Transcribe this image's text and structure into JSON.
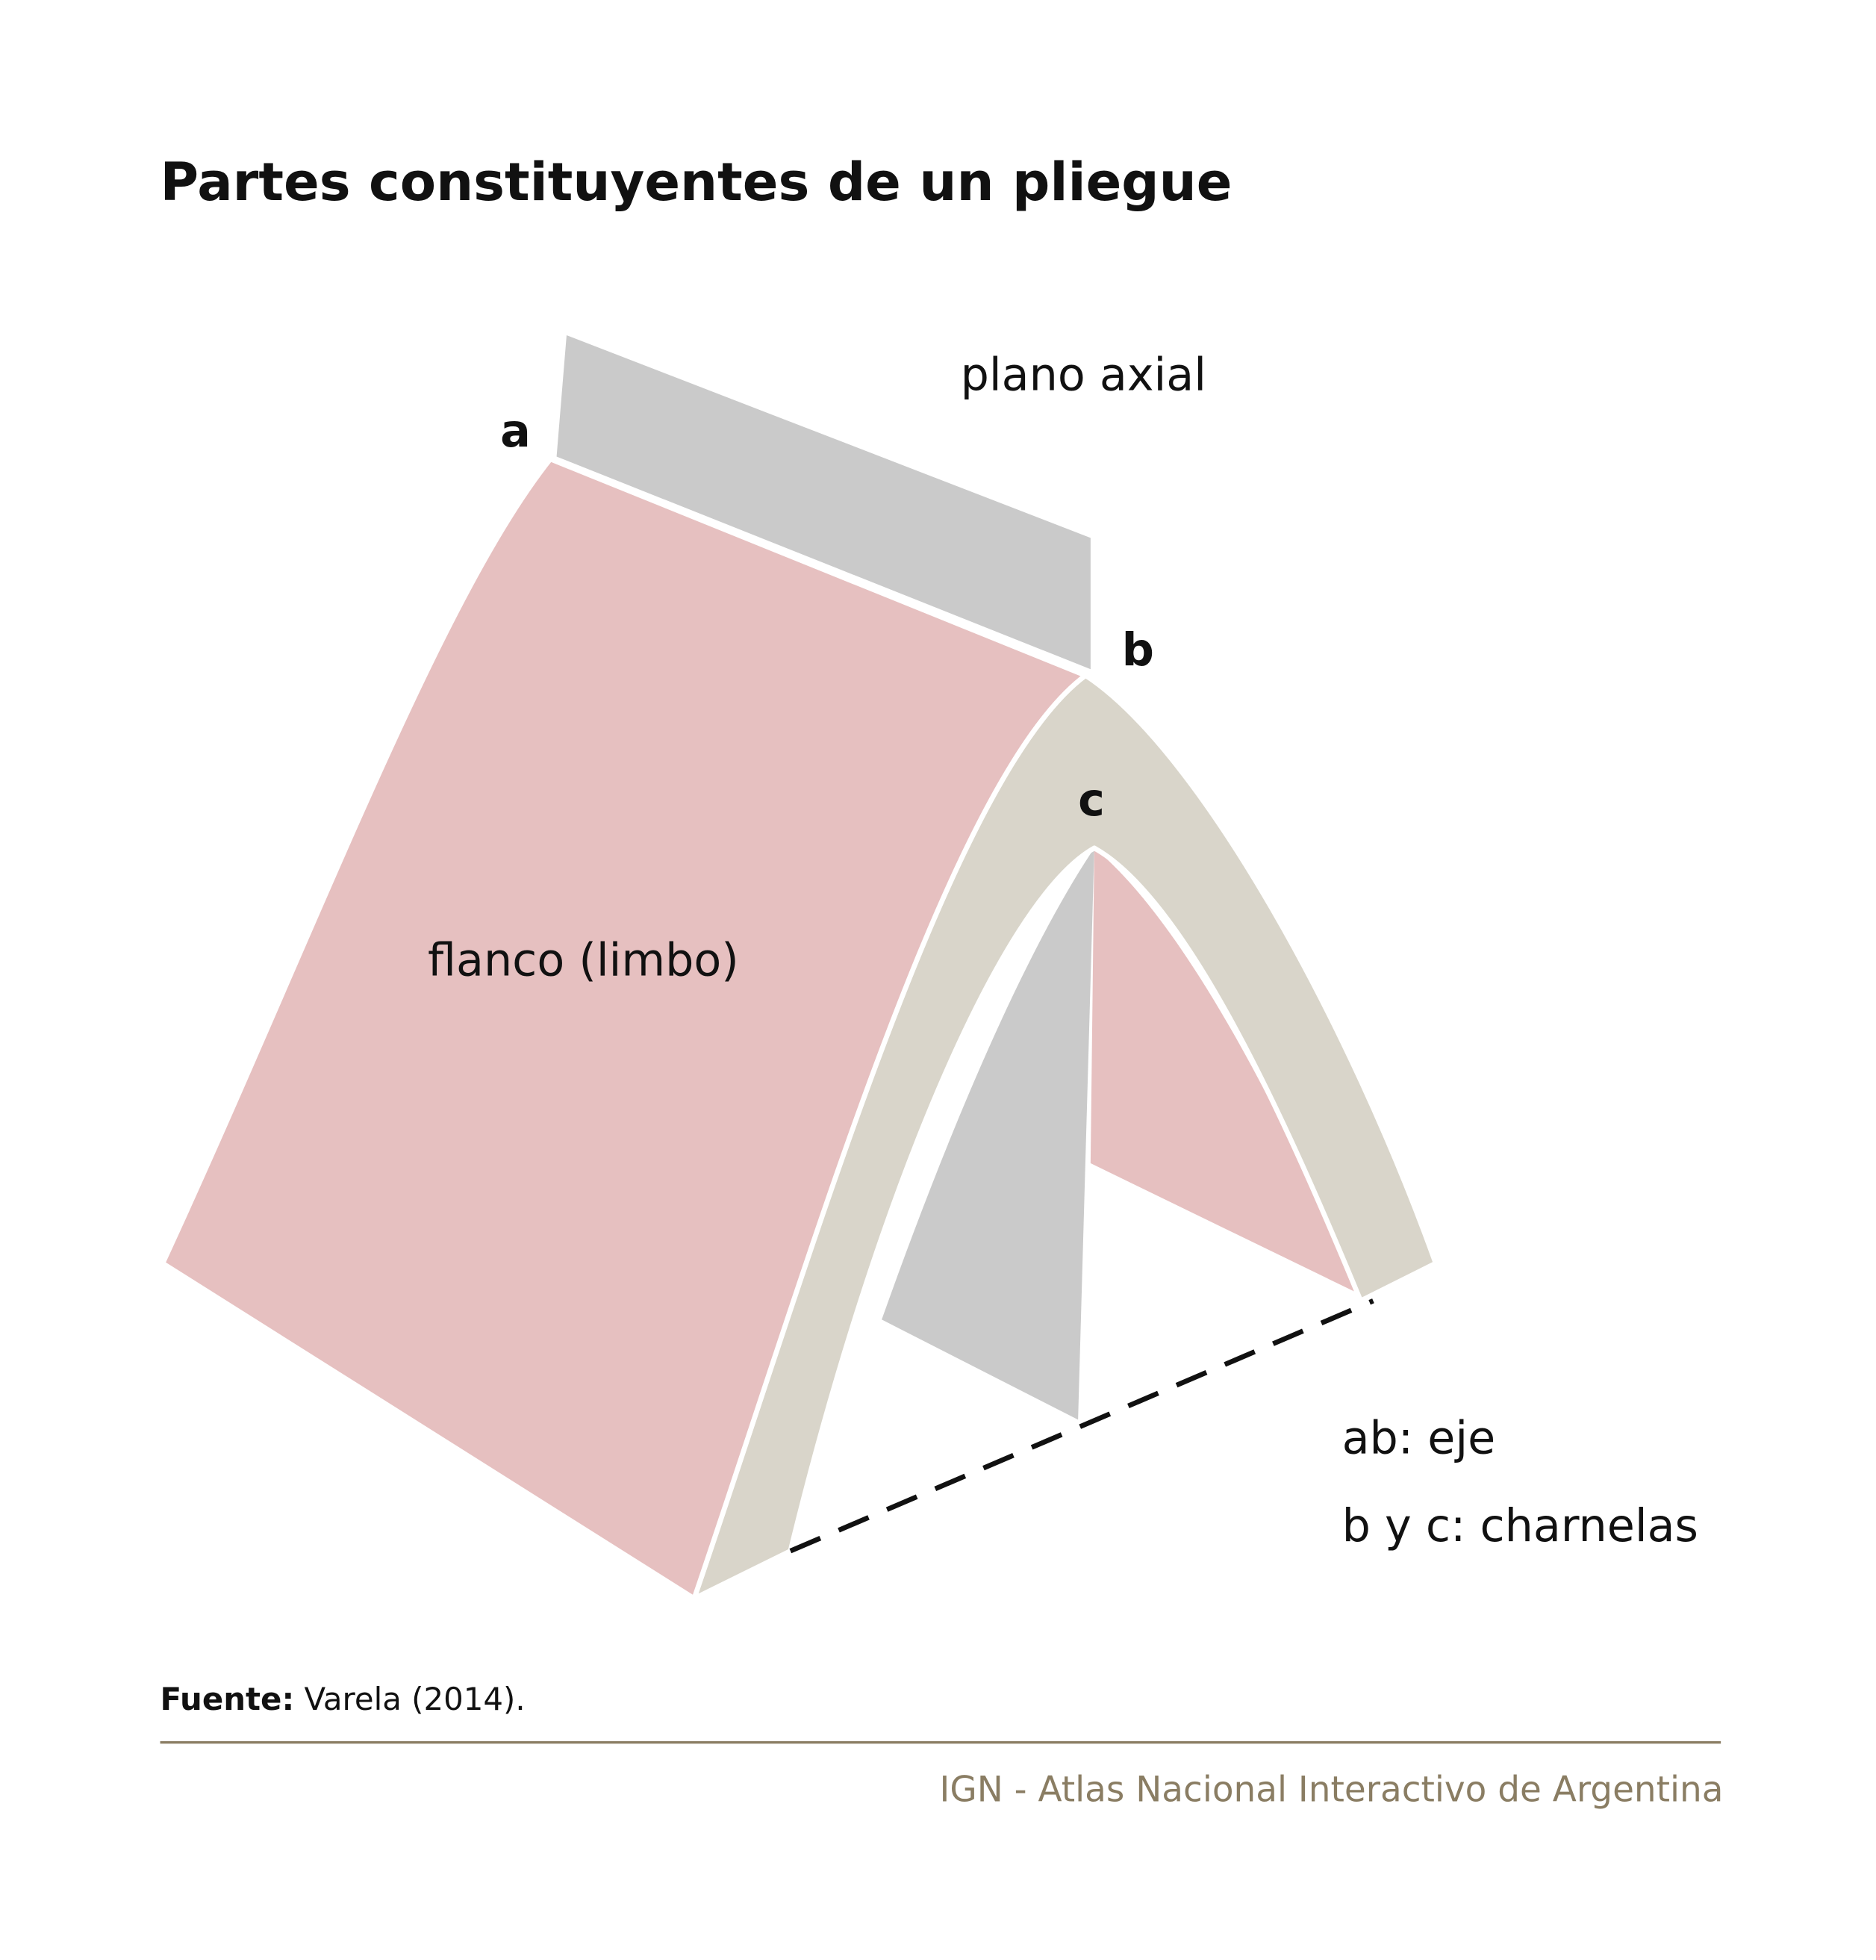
{
  "header": {
    "title": "Partes constituyentes de un pliegue"
  },
  "labels": {
    "axial_plane": "plano axial",
    "a": "a",
    "b": "b",
    "c": "c",
    "limb": "flanco (limbo)"
  },
  "legend": [
    "ab: eje",
    "b y c: charnelas"
  ],
  "source": {
    "label": "Fuente:",
    "text": "Varela (2014)."
  },
  "footer": "IGN - Atlas Nacional Interactivo de Argentina"
}
